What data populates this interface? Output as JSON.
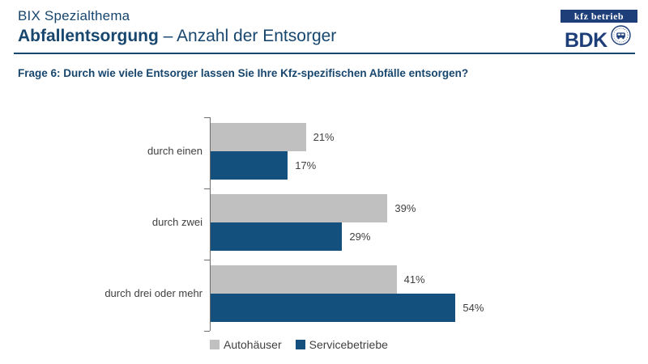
{
  "header": {
    "kicker": "BIX Spezialthema",
    "title_bold": "Abfallentsorgung",
    "title_rest": " – Anzahl der Entsorger",
    "logo_kfz": "kfz betrieb",
    "logo_bdk": "BDK"
  },
  "question": "Frage 6: Durch wie viele Entsorger lassen Sie Ihre Kfz-spezifischen Abfälle entsorgen?",
  "colors": {
    "heading_navy": "#17466E",
    "logo_navy": "#1E3E79",
    "bar_gray": "#C0C0C0",
    "bar_blue": "#14507E",
    "axis_gray": "#6E6E6E",
    "label_gray": "#404040"
  },
  "chart_data": {
    "type": "bar",
    "orientation": "horizontal",
    "categories": [
      "durch einen",
      "durch zwei",
      "durch drei oder mehr"
    ],
    "series": [
      {
        "name": "Autohäuser",
        "color": "#C0C0C0",
        "values": [
          21,
          39,
          41
        ]
      },
      {
        "name": "Servicebetriebe",
        "color": "#14507E",
        "values": [
          17,
          29,
          54
        ]
      }
    ],
    "value_suffix": "%",
    "data_labels": true,
    "xlim": [
      0,
      60
    ],
    "grid": false,
    "legend_position": "bottom"
  }
}
